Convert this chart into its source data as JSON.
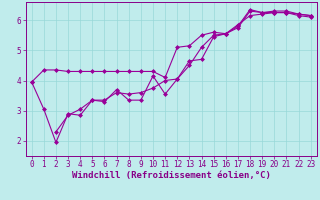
{
  "line1_x": [
    0,
    1,
    2,
    3,
    4,
    5,
    6,
    7,
    8,
    9,
    10,
    11,
    12,
    13,
    14,
    15,
    16,
    17,
    18,
    19,
    20,
    21,
    22,
    23
  ],
  "line1_y": [
    3.95,
    4.35,
    4.35,
    4.3,
    4.3,
    4.3,
    4.3,
    4.3,
    4.3,
    4.3,
    4.3,
    4.1,
    5.1,
    5.15,
    5.5,
    5.6,
    5.55,
    5.75,
    6.3,
    6.25,
    6.25,
    6.25,
    6.2,
    6.15
  ],
  "line2_x": [
    0,
    1,
    2,
    3,
    4,
    5,
    6,
    7,
    8,
    9,
    10,
    11,
    12,
    13,
    14,
    15,
    16,
    17,
    18,
    19,
    20,
    21,
    22,
    23
  ],
  "line2_y": [
    3.95,
    3.05,
    1.95,
    2.9,
    2.85,
    3.35,
    3.3,
    3.7,
    3.35,
    3.35,
    4.15,
    3.55,
    4.05,
    4.65,
    4.7,
    5.45,
    5.55,
    5.8,
    6.35,
    6.25,
    6.3,
    6.3,
    6.2,
    6.15
  ],
  "line3_x": [
    2,
    3,
    4,
    5,
    6,
    7,
    8,
    9,
    10,
    11,
    12,
    13,
    14,
    15,
    16,
    17,
    18,
    19,
    20,
    21,
    22,
    23
  ],
  "line3_y": [
    2.3,
    2.85,
    3.05,
    3.35,
    3.35,
    3.6,
    3.55,
    3.6,
    3.75,
    4.0,
    4.05,
    4.5,
    5.1,
    5.5,
    5.55,
    5.85,
    6.15,
    6.2,
    6.25,
    6.25,
    6.15,
    6.1
  ],
  "color": "#990099",
  "bg_color": "#c0ecec",
  "grid_color": "#98d8d8",
  "xlabel": "Windchill (Refroidissement éolien,°C)",
  "xlim": [
    -0.5,
    23.5
  ],
  "ylim": [
    1.5,
    6.6
  ],
  "yticks": [
    2,
    3,
    4,
    5,
    6
  ],
  "xticks": [
    0,
    1,
    2,
    3,
    4,
    5,
    6,
    7,
    8,
    9,
    10,
    11,
    12,
    13,
    14,
    15,
    16,
    17,
    18,
    19,
    20,
    21,
    22,
    23
  ],
  "marker": "D",
  "markersize": 2.0,
  "linewidth": 0.8,
  "xlabel_fontsize": 6.5,
  "tick_fontsize": 5.5,
  "label_color": "#880088"
}
